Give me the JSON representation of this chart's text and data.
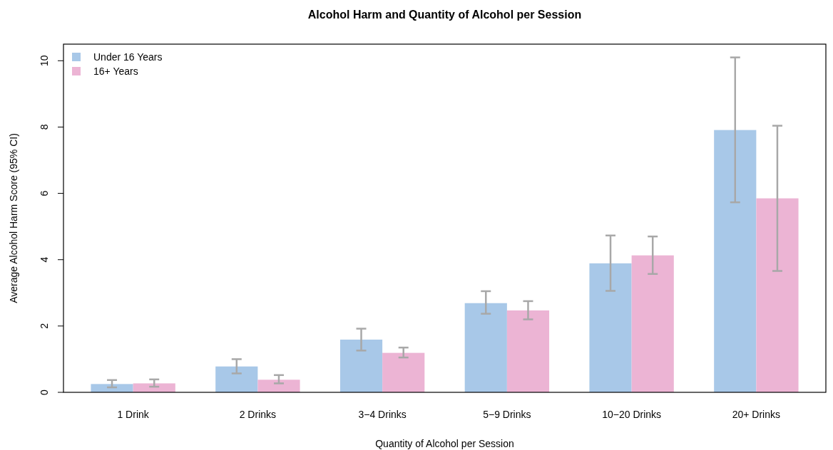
{
  "chart_data": {
    "type": "bar",
    "title": "Alcohol Harm and Quantity of Alcohol per Session",
    "xlabel": "Quantity of Alcohol per Session",
    "ylabel": "Average Alcohol Harm Score (95% CI)",
    "categories": [
      "1 Drink",
      "2 Drinks",
      "3−4 Drinks",
      "5−9 Drinks",
      "10−20 Drinks",
      "20+ Drinks"
    ],
    "series": [
      {
        "name": "Under 16 Years",
        "color": "#a8c8e8",
        "values": [
          0.25,
          0.78,
          1.59,
          2.69,
          3.89,
          7.91
        ],
        "errors": [
          [
            0.15,
            0.37
          ],
          [
            0.57,
            1.0
          ],
          [
            1.26,
            1.92
          ],
          [
            2.37,
            3.05
          ],
          [
            3.06,
            4.73
          ],
          [
            5.73,
            10.1
          ]
        ]
      },
      {
        "name": "16+ Years",
        "color": "#ecb4d4",
        "values": [
          0.27,
          0.38,
          1.19,
          2.47,
          4.13,
          5.85
        ],
        "errors": [
          [
            0.17,
            0.39
          ],
          [
            0.27,
            0.52
          ],
          [
            1.05,
            1.35
          ],
          [
            2.2,
            2.75
          ],
          [
            3.57,
            4.7
          ],
          [
            3.66,
            8.04
          ]
        ]
      }
    ],
    "ylim": [
      0,
      10.5
    ],
    "yticks": [
      0,
      2,
      4,
      6,
      8,
      10
    ],
    "grid": false,
    "legend": "top left"
  }
}
